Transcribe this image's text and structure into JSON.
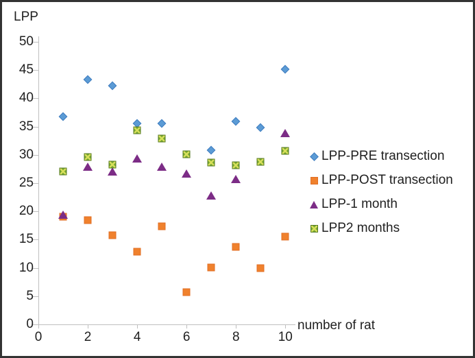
{
  "chart_data": {
    "type": "scatter",
    "title": "LPP",
    "xlabel": "number of rat",
    "ylabel": "LPP",
    "xlim": [
      0,
      10
    ],
    "ylim": [
      0,
      50
    ],
    "x_ticks": [
      0,
      2,
      4,
      6,
      8,
      10
    ],
    "y_ticks": [
      0,
      5,
      10,
      15,
      20,
      25,
      30,
      35,
      40,
      45,
      50
    ],
    "grid": false,
    "legend_position": "right",
    "background_color": "#ffffff",
    "axis_color": "#bfbfbf",
    "frame_color": "#333333",
    "x": [
      1,
      2,
      3,
      4,
      5,
      6,
      7,
      8,
      9,
      10
    ],
    "series": [
      {
        "name": "LPP-PRE transection",
        "marker": "diamond",
        "color": "#5b9bd5",
        "edge": "#3f7cbf",
        "values": [
          36.8,
          43.3,
          42.2,
          35.6,
          35.5,
          null,
          30.8,
          35.9,
          34.8,
          45.2
        ]
      },
      {
        "name": "LPP-POST transection",
        "marker": "square",
        "color": "#f0812d",
        "edge": "#e06e24",
        "values": [
          19.0,
          18.5,
          15.8,
          12.9,
          17.3,
          5.7,
          10.1,
          13.7,
          9.9,
          15.5
        ]
      },
      {
        "name": "LPP-1 month",
        "marker": "triangle",
        "color": "#7c2c86",
        "edge": "#7c2c86",
        "values": [
          19.4,
          27.9,
          27.1,
          29.4,
          27.9,
          26.7,
          22.8,
          25.7,
          null,
          33.9
        ]
      },
      {
        "name": "LPP2 months",
        "marker": "squarex",
        "color": "#76a832",
        "edge": "#55791f",
        "x_color": "#d6de5a",
        "values": [
          27.1,
          29.6,
          28.3,
          34.3,
          32.9,
          30.1,
          28.7,
          28.2,
          28.8,
          30.7
        ]
      }
    ]
  }
}
